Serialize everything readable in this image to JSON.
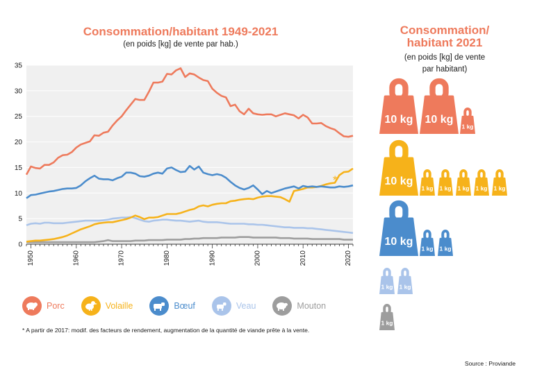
{
  "header": {
    "title": "Consommation/habitant 1949-2021",
    "subtitle": "(en poids [kg] de vente par hab.)"
  },
  "side": {
    "title_line1": "Consommation/",
    "title_line2": "habitant 2021",
    "subtitle_line1": "(en poids [kg] de vente",
    "subtitle_line2": "par habitant)",
    "label_10kg": "10 kg",
    "label_1kg": "1 kg",
    "rows": [
      {
        "meat": "Porc",
        "color": "#ee7a5c",
        "tens": 2,
        "ones": 1
      },
      {
        "meat": "Volaille",
        "color": "#f6b21a",
        "tens": 1,
        "ones": 5
      },
      {
        "meat": "Bœuf",
        "color": "#4b8ccc",
        "tens": 1,
        "ones": 2
      },
      {
        "meat": "Veau",
        "color": "#aac4ea",
        "tens": 0,
        "ones": 2
      },
      {
        "meat": "Mouton",
        "color": "#9d9d9d",
        "tens": 0,
        "ones": 1
      }
    ]
  },
  "legend": [
    {
      "label": "Porc",
      "color": "#ee7a5c",
      "icon": "pig-icon"
    },
    {
      "label": "Volaille",
      "color": "#f6b21a",
      "icon": "chicken-icon"
    },
    {
      "label": "Bœuf",
      "color": "#4b8ccc",
      "icon": "cow-icon"
    },
    {
      "label": "Veau",
      "color": "#aac4ea",
      "icon": "calf-icon"
    },
    {
      "label": "Mouton",
      "color": "#9d9d9d",
      "icon": "sheep-icon"
    }
  ],
  "footnote": "* A partir de 2017: modif. des facteurs de rendement, augmentation de la quantité de viande prête à la vente.",
  "source": "Source : Proviande",
  "chart_data": {
    "type": "line",
    "title": "Consommation/habitant 1949-2021",
    "xlabel": "",
    "ylabel": "",
    "xlim": [
      1949,
      2021
    ],
    "ylim": [
      0,
      35
    ],
    "yticks": [
      0,
      5,
      10,
      15,
      20,
      25,
      30,
      35
    ],
    "xticks": [
      1950,
      1960,
      1970,
      1980,
      1990,
      2000,
      2010,
      2020
    ],
    "grid": true,
    "annotation": {
      "text": "*",
      "x": 2017,
      "y": 13.0,
      "series": "Volaille"
    },
    "x": [
      1949,
      1950,
      1951,
      1952,
      1953,
      1954,
      1955,
      1956,
      1957,
      1958,
      1959,
      1960,
      1961,
      1962,
      1963,
      1964,
      1965,
      1966,
      1967,
      1968,
      1969,
      1970,
      1971,
      1972,
      1973,
      1974,
      1975,
      1976,
      1977,
      1978,
      1979,
      1980,
      1981,
      1982,
      1983,
      1984,
      1985,
      1986,
      1987,
      1988,
      1989,
      1990,
      1991,
      1992,
      1993,
      1994,
      1995,
      1996,
      1997,
      1998,
      1999,
      2000,
      2001,
      2002,
      2003,
      2004,
      2005,
      2006,
      2007,
      2008,
      2009,
      2010,
      2011,
      2012,
      2013,
      2014,
      2015,
      2016,
      2017,
      2018,
      2019,
      2020,
      2021
    ],
    "series": [
      {
        "name": "Porc",
        "color": "#ee7a5c",
        "values": [
          13.6,
          15.2,
          14.9,
          14.8,
          15.5,
          15.5,
          16.0,
          16.9,
          17.4,
          17.5,
          18.0,
          18.9,
          19.5,
          19.8,
          20.1,
          21.3,
          21.2,
          21.8,
          22.0,
          23.2,
          24.2,
          25.0,
          26.2,
          27.3,
          28.4,
          28.2,
          28.2,
          29.8,
          31.6,
          31.6,
          31.8,
          33.3,
          33.2,
          34.0,
          34.4,
          32.7,
          33.4,
          33.2,
          32.6,
          32.1,
          31.9,
          30.4,
          29.6,
          29.0,
          28.7,
          27.0,
          27.3,
          26.0,
          25.4,
          26.5,
          25.6,
          25.4,
          25.3,
          25.4,
          25.4,
          25.0,
          25.3,
          25.6,
          25.4,
          25.2,
          24.6,
          25.3,
          24.8,
          23.6,
          23.6,
          23.7,
          23.1,
          22.7,
          22.4,
          21.7,
          21.1,
          21.0,
          21.2
        ]
      },
      {
        "name": "Volaille",
        "color": "#f6b21a",
        "values": [
          0.5,
          0.6,
          0.7,
          0.7,
          0.8,
          0.9,
          1.0,
          1.2,
          1.4,
          1.7,
          2.1,
          2.5,
          2.9,
          3.2,
          3.5,
          3.9,
          4.1,
          4.2,
          4.3,
          4.3,
          4.5,
          4.7,
          4.9,
          5.2,
          5.6,
          5.3,
          4.9,
          5.2,
          5.2,
          5.3,
          5.6,
          5.9,
          5.9,
          5.9,
          6.1,
          6.4,
          6.7,
          6.9,
          7.4,
          7.6,
          7.4,
          7.7,
          7.9,
          8.0,
          8.0,
          8.4,
          8.5,
          8.7,
          8.8,
          8.9,
          8.8,
          9.1,
          9.3,
          9.4,
          9.4,
          9.3,
          9.2,
          8.8,
          8.3,
          10.4,
          10.6,
          10.8,
          11.1,
          11.1,
          11.2,
          11.4,
          11.7,
          11.9,
          12.0,
          13.5,
          14.1,
          14.2,
          14.8
        ]
      },
      {
        "name": "Bœuf",
        "color": "#4b8ccc",
        "values": [
          9.0,
          9.6,
          9.7,
          9.9,
          10.1,
          10.3,
          10.4,
          10.6,
          10.8,
          10.9,
          10.9,
          11.0,
          11.5,
          12.3,
          12.9,
          13.4,
          12.8,
          12.7,
          12.7,
          12.5,
          12.9,
          13.2,
          14.0,
          14.0,
          13.8,
          13.3,
          13.2,
          13.4,
          13.8,
          14.0,
          13.8,
          14.8,
          15.0,
          14.5,
          14.1,
          14.2,
          15.3,
          14.6,
          15.2,
          14.0,
          13.7,
          13.5,
          13.7,
          13.5,
          13.0,
          12.2,
          11.5,
          11.0,
          10.7,
          11.0,
          11.5,
          10.7,
          9.8,
          10.4,
          10.0,
          10.3,
          10.6,
          10.9,
          11.1,
          11.3,
          10.9,
          11.4,
          11.2,
          11.3,
          11.2,
          11.3,
          11.2,
          11.1,
          11.1,
          11.3,
          11.2,
          11.3,
          11.5
        ]
      },
      {
        "name": "Veau",
        "color": "#aac4ea",
        "values": [
          3.7,
          4.0,
          4.1,
          4.0,
          4.2,
          4.2,
          4.1,
          4.1,
          4.1,
          4.2,
          4.3,
          4.4,
          4.5,
          4.6,
          4.6,
          4.6,
          4.6,
          4.7,
          4.8,
          5.0,
          5.1,
          5.2,
          5.2,
          5.3,
          5.1,
          4.8,
          4.5,
          4.4,
          4.6,
          4.7,
          4.8,
          4.8,
          4.7,
          4.6,
          4.6,
          4.5,
          4.4,
          4.5,
          4.6,
          4.4,
          4.3,
          4.3,
          4.3,
          4.2,
          4.1,
          4.0,
          4.0,
          4.0,
          4.0,
          3.9,
          3.9,
          3.8,
          3.8,
          3.7,
          3.6,
          3.5,
          3.4,
          3.3,
          3.3,
          3.2,
          3.2,
          3.2,
          3.1,
          3.1,
          3.0,
          2.9,
          2.8,
          2.7,
          2.6,
          2.5,
          2.4,
          2.3,
          2.2
        ]
      },
      {
        "name": "Mouton",
        "color": "#9d9d9d",
        "values": [
          0.4,
          0.4,
          0.4,
          0.4,
          0.4,
          0.4,
          0.4,
          0.4,
          0.4,
          0.4,
          0.4,
          0.4,
          0.4,
          0.4,
          0.4,
          0.4,
          0.5,
          0.6,
          0.8,
          0.6,
          0.6,
          0.6,
          0.6,
          0.6,
          0.7,
          0.7,
          0.7,
          0.8,
          0.8,
          0.8,
          0.8,
          0.9,
          0.9,
          0.9,
          0.9,
          1.0,
          1.0,
          1.1,
          1.1,
          1.2,
          1.2,
          1.2,
          1.2,
          1.3,
          1.3,
          1.3,
          1.3,
          1.4,
          1.4,
          1.4,
          1.3,
          1.3,
          1.3,
          1.3,
          1.3,
          1.3,
          1.2,
          1.2,
          1.2,
          1.1,
          1.1,
          1.1,
          1.1,
          1.0,
          1.0,
          1.0,
          1.0,
          1.0,
          1.0,
          1.0,
          0.9,
          0.9,
          0.9
        ]
      }
    ]
  }
}
